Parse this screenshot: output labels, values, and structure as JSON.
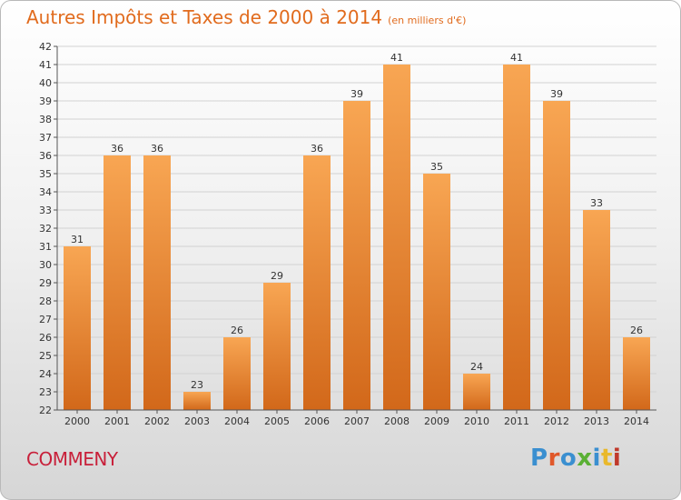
{
  "header": {
    "title": "Autres Impôts et Taxes de 2000 à 2014",
    "unit": "(en milliers d'€)"
  },
  "footer": {
    "commune": "COMMENY",
    "logo_text": "Proxiti",
    "logo_colors": [
      "#3a8fd0",
      "#e0582a",
      "#3a8fd0",
      "#5ab034",
      "#3a8fd0",
      "#e9b82b",
      "#c0392b"
    ]
  },
  "colors": {
    "bar_top": "#f8a653",
    "bar_bottom": "#d2681a",
    "title": "#e16b1d",
    "commune": "#c8203a"
  },
  "chart_data": {
    "type": "bar",
    "title": "Autres Impôts et Taxes de 2000 à 2014",
    "subtitle": "(en milliers d'€)",
    "xlabel": "",
    "ylabel": "",
    "categories": [
      "2000",
      "2001",
      "2002",
      "2003",
      "2004",
      "2005",
      "2006",
      "2007",
      "2008",
      "2009",
      "2010",
      "2011",
      "2012",
      "2013",
      "2014"
    ],
    "values": [
      31,
      36,
      36,
      23,
      26,
      29,
      36,
      39,
      41,
      35,
      24,
      41,
      39,
      33,
      26
    ],
    "ylim": [
      22,
      42
    ],
    "yticks": [
      22,
      23,
      24,
      25,
      26,
      27,
      28,
      29,
      30,
      31,
      32,
      33,
      34,
      35,
      36,
      37,
      38,
      39,
      40,
      41,
      42
    ],
    "grid": true,
    "data_labels": true
  }
}
